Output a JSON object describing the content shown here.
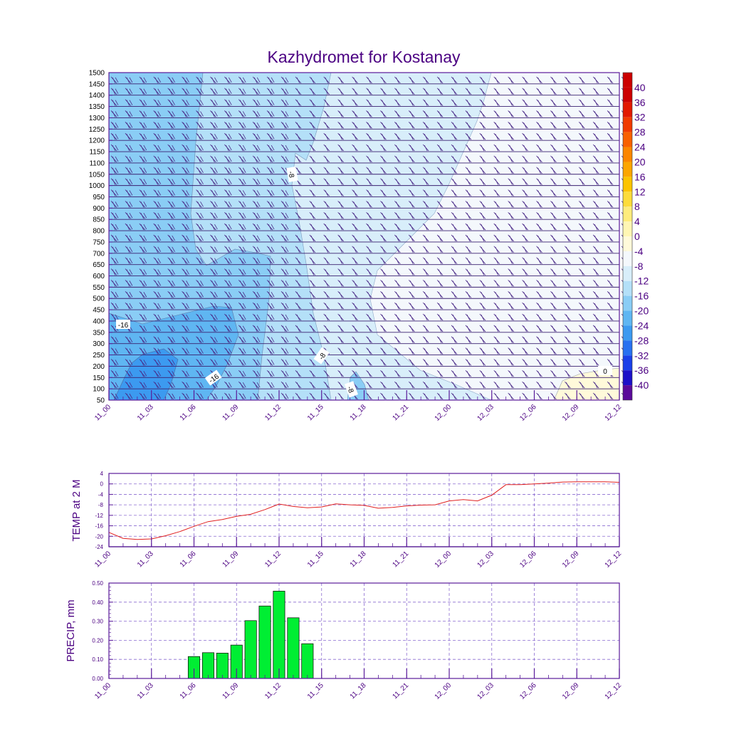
{
  "title": "Kazhydromet for Kostanay",
  "colors": {
    "frame": "#5a1a9a",
    "grid": "#8a6ad0",
    "temp_line": "#e02020",
    "precip_bar": "#00ee33",
    "title": "#4b0082"
  },
  "chart_data": [
    {
      "type": "heatmap",
      "description_key": "cross-section",
      "title": "Kazhydromet for Kostanay",
      "x_tick_labels": [
        "11_00",
        "11_03",
        "11_06",
        "11_09",
        "11_12",
        "11_15",
        "11_18",
        "11_21",
        "12_00",
        "12_03",
        "12_06",
        "12_09",
        "12_12"
      ],
      "y_tick_labels": [
        "1500",
        "1450",
        "1400",
        "1350",
        "1300",
        "1250",
        "1200",
        "1150",
        "1100",
        "1050",
        "1000",
        "950",
        "900",
        "850",
        "800",
        "750",
        "700",
        "650",
        "600",
        "550",
        "500",
        "450",
        "400",
        "350",
        "300",
        "250",
        "200",
        "150",
        "100",
        "50"
      ],
      "ylim": [
        50,
        1500
      ],
      "colorbar_labels": [
        "40",
        "36",
        "32",
        "28",
        "24",
        "20",
        "16",
        "12",
        "8",
        "4",
        "0",
        "-4",
        "-8",
        "-12",
        "-16",
        "-20",
        "-24",
        "-28",
        "-32",
        "-36",
        "-40"
      ],
      "colorbar_colors": [
        "#cc0000",
        "#e21800",
        "#f03a00",
        "#f86000",
        "#fb8600",
        "#fca600",
        "#fcc400",
        "#fddc3a",
        "#feec7c",
        "#fff6b4",
        "#fffada",
        "#f4f8fc",
        "#d8eefa",
        "#b4e0f8",
        "#8acdf5",
        "#5fb6f2",
        "#3c9af0",
        "#2870f0",
        "#1a40e8",
        "#1c10c8",
        "#5a0a9a"
      ],
      "contour_labels": [
        "-16",
        "-16",
        "-8",
        "-8",
        "-8",
        "0"
      ]
    },
    {
      "type": "line",
      "ylabel": "TEMP at 2 M",
      "x_tick_labels": [
        "11_00",
        "11_03",
        "11_06",
        "11_09",
        "11_12",
        "11_15",
        "11_18",
        "11_21",
        "12_00",
        "12_03",
        "12_06",
        "12_09",
        "12_12"
      ],
      "y_tick_labels": [
        "4",
        "0",
        "-4",
        "-8",
        "-12",
        "-16",
        "-20",
        "-24"
      ],
      "ylim": [
        -24,
        4
      ],
      "x_hours": [
        0,
        1,
        2,
        3,
        4,
        5,
        6,
        7,
        8,
        9,
        10,
        11,
        12,
        13,
        14,
        15,
        16,
        17,
        18,
        19,
        20,
        21,
        22,
        23,
        24,
        25,
        26,
        27,
        28,
        29,
        30,
        31,
        32,
        33,
        34,
        35,
        36
      ],
      "values": [
        -18.5,
        -20.8,
        -21.2,
        -21.0,
        -19.8,
        -18.2,
        -16.2,
        -14.4,
        -13.6,
        -12.4,
        -11.6,
        -9.8,
        -7.7,
        -8.6,
        -9.1,
        -8.8,
        -7.6,
        -8.0,
        -8.2,
        -9.3,
        -9.0,
        -8.4,
        -8.1,
        -8.0,
        -6.5,
        -6.0,
        -6.5,
        -4.3,
        -0.3,
        -0.3,
        0.0,
        0.3,
        0.7,
        0.8,
        0.8,
        0.8,
        0.6
      ],
      "grid": true
    },
    {
      "type": "bar",
      "ylabel": "PRECIP, mm",
      "x_tick_labels": [
        "11_00",
        "11_03",
        "11_06",
        "11_09",
        "11_12",
        "11_15",
        "11_18",
        "11_21",
        "12_00",
        "12_03",
        "12_06",
        "12_09",
        "12_12"
      ],
      "y_tick_labels": [
        "0.50",
        "0.40",
        "0.30",
        "0.20",
        "0.10",
        "0.00"
      ],
      "ylim": [
        0,
        0.5
      ],
      "x_hours": [
        6,
        7,
        8,
        9,
        10,
        11,
        12,
        13,
        14
      ],
      "values": [
        0.115,
        0.135,
        0.133,
        0.175,
        0.303,
        0.38,
        0.458,
        0.318,
        0.182
      ],
      "grid": true
    }
  ]
}
